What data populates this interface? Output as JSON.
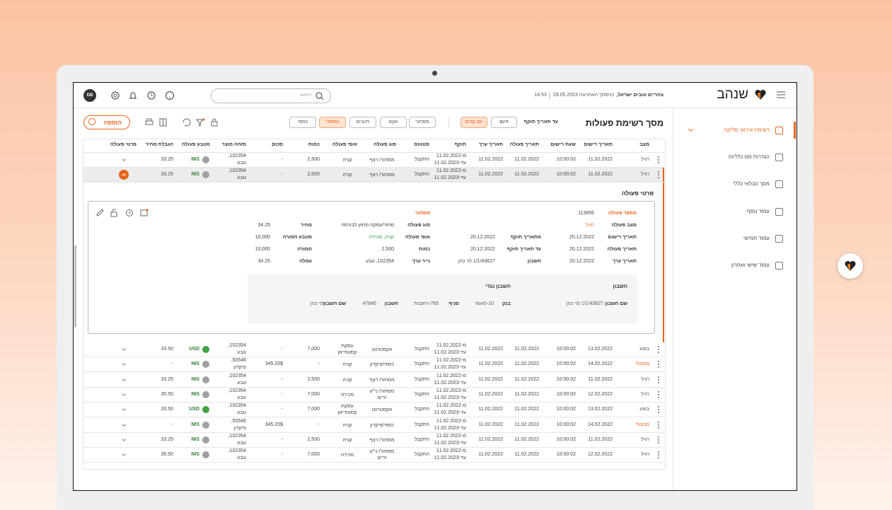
{
  "header": {
    "logo": "שנהב",
    "greeting": "צהריים טובים ישראל,",
    "last_login": "כניסתך האחרונה 29.05.2023",
    "time": "14:53",
    "search_placeholder": "חיפוש",
    "avatar": "DB"
  },
  "sidebar": {
    "items": [
      "רשימת אירועי סליקה",
      "הגדרות מס כלליות",
      "מסך טבלאי כללי",
      "עמוד נוסף",
      "עמוד חמישי",
      "עמוד שישי ואחרון"
    ]
  },
  "toolbar": {
    "title": "מסך רשימת פעולות",
    "date_label": "עד תאריך תוקף",
    "date_buttons": [
      "היום",
      "יום קודם"
    ],
    "tabs": [
      "מסחור",
      "אקס",
      "חיובים",
      "נוספלי",
      "כספי"
    ],
    "add_button": "הוספה"
  },
  "table": {
    "columns": [
      "מצב",
      "תאריך רישום",
      "שעת רישום",
      "תאריך פעולה",
      "תאריך ערך",
      "תוקף",
      "סטטוס",
      "סוג פעולה",
      "אופי פעולה",
      "כמות",
      "סכום",
      "מזהה מוצר",
      "מטבע פעולה",
      "הגבלת מחיר",
      "פרטי פעולה"
    ],
    "status_colors": {
      "מבוטל": "#e8641b"
    },
    "currency_colors": {
      "NIS": "#a0a0a0",
      "USD": "#43a047"
    },
    "rows": [
      [
        "רגיל",
        "11.02.2022",
        "10:00:02",
        "11.02.2022",
        "11.02.2022",
        "מ-11.02.2022",
        "עד-11.02.2023",
        "התקבל",
        "מסחור/ רצף",
        "קניה",
        "2,500",
        "-",
        "102354,",
        "טבע",
        "NIS",
        "33.25"
      ],
      [
        "רגיל",
        "11.02.2022",
        "10:00:02",
        "11.02.2022",
        "11.02.2022",
        "מ-11.02.2022",
        "עד-11.02.2023",
        "התקבל",
        "מסחור/ רצף",
        "קניה",
        "2,500",
        "-",
        "102354,",
        "טבע",
        "NIS",
        "33.25"
      ],
      [
        "בוצע",
        "13.02.2022",
        "10:00:02",
        "11.02.2022",
        "11.02.2022",
        "מ-11.02.2022",
        "עד-11.02.2023",
        "התקבל",
        "אקסטרנט",
        "עסקת קסטודיאן",
        "7,000",
        "-",
        "102354,",
        "טבע",
        "USD",
        "33.50"
      ],
      [
        "מבוטל",
        "14.02.2022",
        "10:00:02",
        "11.02.2022",
        "11.02.2022",
        "מ-11.02.2022",
        "עד-11.02.2023",
        "התקבל",
        "כספי/פיקדון",
        "קניה",
        "-",
        "345.20$",
        "50546,",
        "פיקדון",
        "NIS",
        "-"
      ],
      [
        "רגיל",
        "11.02.2022",
        "10:00:02",
        "11.02.2022",
        "11.02.2022",
        "מ-11.02.2022",
        "עד-11.02.2023",
        "התקבל",
        "מסחור/ רצף",
        "קניה",
        "2,500",
        "-",
        "102354,",
        "טבע",
        "NIS",
        "33.25"
      ],
      [
        "רגיל",
        "12.02.2022",
        "10:00:02",
        "11.02.2022",
        "11.02.2022",
        "מ-11.02.2022",
        "עד-11.02.2023",
        "התקבל",
        "מסחור/ ני\"ע זרים",
        "מכירה",
        "7,000",
        "-",
        "102354,",
        "טבע",
        "NIS",
        "35.50"
      ],
      [
        "בוצע",
        "13.02.2022",
        "10:00:02",
        "11.02.2022",
        "11.02.2022",
        "מ-11.02.2022",
        "עד-11.02.2023",
        "התקבל",
        "אקסטרנט",
        "עסקת קסטודיאן",
        "7,000",
        "-",
        "102354,",
        "טבע",
        "USD",
        "33.50"
      ],
      [
        "מבוטל",
        "14.02.2022",
        "10:00:02",
        "11.02.2022",
        "11.02.2022",
        "מ-11.02.2022",
        "עד-11.02.2023",
        "התקבל",
        "כספי/פיקדון",
        "קניה",
        "-",
        "345.20$",
        "50546,",
        "פיקדון",
        "NIS",
        "-"
      ],
      [
        "רגיל",
        "11.02.2022",
        "10:00:02",
        "11.02.2022",
        "11.02.2022",
        "מ-11.02.2022",
        "עד-11.02.2023",
        "התקבל",
        "מסחור/ רצף",
        "קניה",
        "2,500",
        "-",
        "102354,",
        "טבע",
        "NIS",
        "33.25"
      ],
      [
        "רגיל",
        "12.02.2022",
        "10:00:02",
        "11.02.2022",
        "11.02.2022",
        "מ-11.02.2022",
        "עד-11.02.2023",
        "התקבל",
        "מסחור/ ני\"ע זרים",
        "מכירה",
        "7,000",
        "-",
        "102354,",
        "טבע",
        "NIS",
        "35.50"
      ]
    ]
  },
  "details": {
    "title": "פרטי פעולה",
    "section": "מסחור",
    "columns": [
      [
        {
          "label": "מספר פעולה",
          "value": "113856"
        },
        {
          "label": "מצב פעולה",
          "value": "רגיל"
        },
        {
          "label": "תאריך רישום",
          "value": "20.12.2022"
        },
        {
          "label": "תאריך פעולה",
          "value": "20.12.2022"
        },
        {
          "label": "תאריך ערך",
          "value": "20.12.2022"
        }
      ],
      [
        {
          "label": "מתאריך תוקף",
          "value": "20.12.2022"
        },
        {
          "label": "עד תאריך תוקף",
          "value": "20.12.2022"
        },
        {
          "label": "חשבון",
          "value": "1/1/43627 לוי כהן"
        }
      ],
      [
        {
          "label": "סוג פעולה",
          "value": "סחור/עסקה מחוץ לבורסה"
        },
        {
          "label": "אופי פעולה",
          "value": "קניה, מכירה"
        },
        {
          "label": "כמות",
          "value": "2,500"
        },
        {
          "label": "נייר ערך",
          "value": "102354, טבע"
        }
      ],
      [
        {
          "label": "מחיר",
          "value": "34.25"
        },
        {
          "label": "מטבע תמורה",
          "value": "10,000"
        },
        {
          "label": "תמורה",
          "value": "10,000"
        },
        {
          "label": "עמלה",
          "value": "34.25"
        }
      ]
    ],
    "account": {
      "title": "חשבון",
      "counter_title": "חשבון נגדי",
      "fields": [
        {
          "label": "שם חשבון",
          "value": "1/1/43627 לוי כהן"
        },
        {
          "label": "בנק",
          "value": "10-לאומי"
        },
        {
          "label": "סניף",
          "value": "765-רחובות"
        },
        {
          "label": "חשבון",
          "value": "47645"
        },
        {
          "label": "שם חשבון",
          "value": "לוי כהן"
        }
      ]
    }
  }
}
